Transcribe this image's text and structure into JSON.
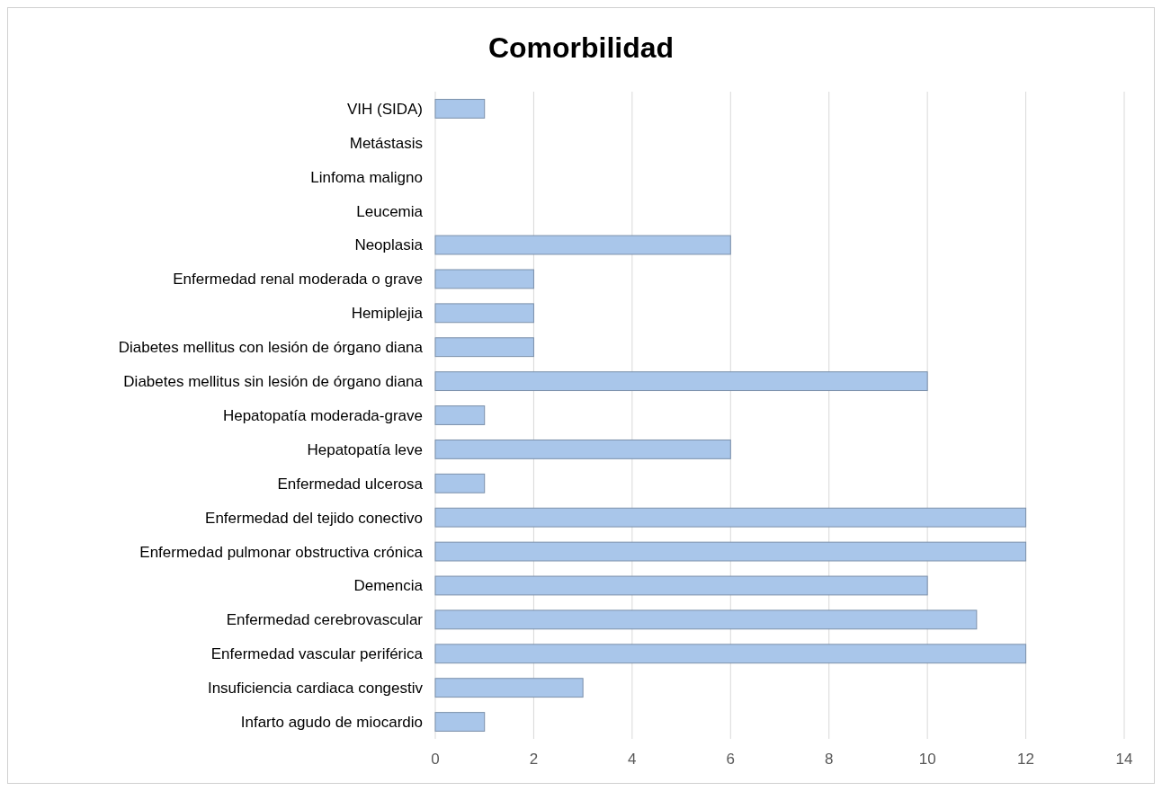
{
  "chart_data": {
    "type": "bar",
    "title": "Comorbilidad",
    "orientation": "horizontal",
    "categories": [
      "VIH (SIDA)",
      "Metástasis",
      "Linfoma maligno",
      "Leucemia",
      "Neoplasia",
      "Enfermedad renal moderada o grave",
      "Hemiplejia",
      "Diabetes mellitus con lesión de órgano diana",
      "Diabetes mellitus sin lesión de órgano diana",
      "Hepatopatía moderada-grave",
      "Hepatopatía leve",
      "Enfermedad ulcerosa",
      "Enfermedad del tejido conectivo",
      "Enfermedad pulmonar obstructiva crónica",
      "Demencia",
      "Enfermedad cerebrovascular",
      "Enfermedad vascular periférica",
      "Insuficiencia cardiaca congestiv",
      "Infarto agudo de miocardio"
    ],
    "values": [
      1,
      0,
      0,
      0,
      6,
      2,
      2,
      2,
      10,
      1,
      6,
      1,
      12,
      12,
      10,
      11,
      12,
      3,
      1
    ],
    "color": "#a9c6ea",
    "xlim": [
      0,
      14
    ],
    "xticks": [
      0,
      2,
      4,
      6,
      8,
      10,
      12,
      14
    ],
    "grid": "x"
  }
}
